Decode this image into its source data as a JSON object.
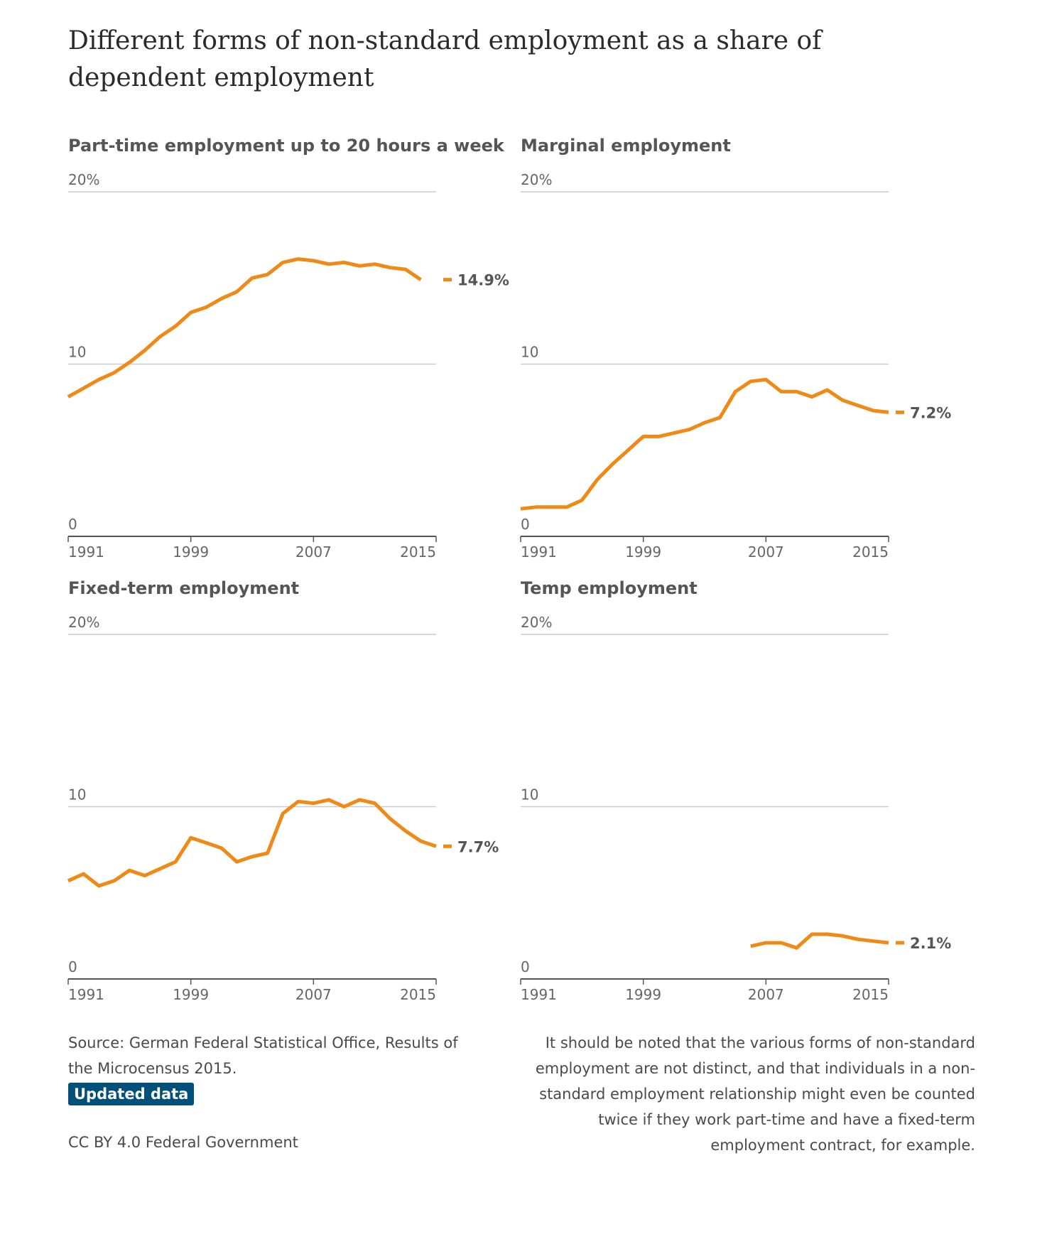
{
  "title": "Different forms of non-standard employment as a share of dependent employment",
  "colors": {
    "line": "#ee8a15",
    "grid": "#cccccc",
    "axis": "#555555",
    "text": "#666666",
    "badge": "#00507a"
  },
  "chart_data": [
    {
      "type": "line",
      "title": "Part-time employment up to 20 hours a week",
      "y_ticks": [
        "20%",
        "10",
        "0"
      ],
      "ylim": [
        0,
        20
      ],
      "x_ticks": [
        "1991",
        "1999",
        "2007",
        "2015"
      ],
      "end_label": "14.9%",
      "x": [
        1991,
        1992,
        1993,
        1994,
        1995,
        1996,
        1997,
        1998,
        1999,
        2000,
        2001,
        2002,
        2003,
        2004,
        2005,
        2006,
        2007,
        2008,
        2009,
        2010,
        2011,
        2012,
        2013,
        2014
      ],
      "values": [
        8.1,
        8.6,
        9.1,
        9.5,
        10.1,
        10.8,
        11.6,
        12.2,
        13.0,
        13.3,
        13.8,
        14.2,
        15.0,
        15.2,
        15.9,
        16.1,
        16.0,
        15.8,
        15.9,
        15.7,
        15.8,
        15.6,
        15.5,
        14.9
      ]
    },
    {
      "type": "line",
      "title": "Marginal employment",
      "y_ticks": [
        "20%",
        "10",
        "0"
      ],
      "ylim": [
        0,
        20
      ],
      "x_ticks": [
        "1991",
        "1999",
        "2007",
        "2015"
      ],
      "end_label": "7.2%",
      "x": [
        1991,
        1992,
        1993,
        1994,
        1995,
        1996,
        1997,
        1998,
        1999,
        2000,
        2001,
        2002,
        2003,
        2004,
        2005,
        2006,
        2007,
        2008,
        2009,
        2010,
        2011,
        2012,
        2013,
        2014,
        2015
      ],
      "values": [
        1.6,
        1.7,
        1.7,
        1.7,
        2.1,
        3.3,
        4.2,
        5.0,
        5.8,
        5.8,
        6.0,
        6.2,
        6.6,
        6.9,
        8.4,
        9.0,
        9.1,
        8.4,
        8.4,
        8.1,
        8.5,
        7.9,
        7.6,
        7.3,
        7.2
      ]
    },
    {
      "type": "line",
      "title": "Fixed-term employment",
      "y_ticks": [
        "20%",
        "10",
        "0"
      ],
      "ylim": [
        0,
        20
      ],
      "x_ticks": [
        "1991",
        "1999",
        "2007",
        "2015"
      ],
      "end_label": "7.7%",
      "x": [
        1991,
        1992,
        1993,
        1994,
        1995,
        1996,
        1997,
        1998,
        1999,
        2000,
        2001,
        2002,
        2003,
        2004,
        2005,
        2006,
        2007,
        2008,
        2009,
        2010,
        2011,
        2012,
        2013,
        2014,
        2015
      ],
      "values": [
        5.7,
        6.1,
        5.4,
        5.7,
        6.3,
        6.0,
        6.4,
        6.8,
        8.2,
        7.9,
        7.6,
        6.8,
        7.1,
        7.3,
        9.6,
        10.3,
        10.2,
        10.4,
        10.0,
        10.4,
        10.2,
        9.3,
        8.6,
        8.0,
        7.7
      ]
    },
    {
      "type": "line",
      "title": "Temp employment",
      "y_ticks": [
        "20%",
        "10",
        "0"
      ],
      "ylim": [
        0,
        20
      ],
      "x_ticks": [
        "1991",
        "1999",
        "2007",
        "2015"
      ],
      "end_label": "2.1%",
      "x": [
        2006,
        2007,
        2008,
        2009,
        2010,
        2011,
        2012,
        2013,
        2014,
        2015
      ],
      "values": [
        1.9,
        2.1,
        2.1,
        1.8,
        2.6,
        2.6,
        2.5,
        2.3,
        2.2,
        2.1
      ]
    }
  ],
  "source_text": "Source: German Federal Statistical Office, Results of the Microcensus 2015.",
  "badge_label": "Updated data",
  "license": "CC BY 4.0 Federal Government",
  "note": "It should be noted that the various forms of non-standard employment are not distinct, and that individuals in a non-standard employment relationship might even be counted twice if they work part-time and have a fixed-term employment contract, for example."
}
